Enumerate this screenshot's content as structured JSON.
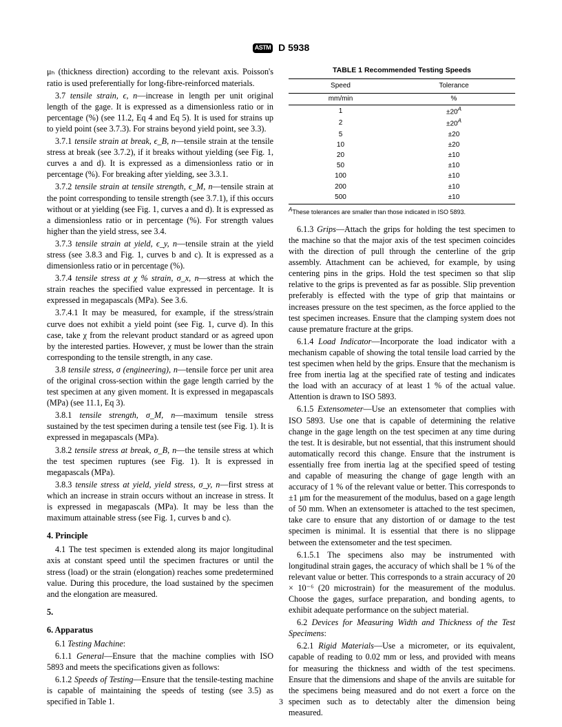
{
  "header": {
    "logo": "ASTM",
    "standard": "D 5938"
  },
  "left": {
    "p_mu": "μₕ (thickness direction) according to the relevant axis. Poisson's ratio is used preferentially for long-fibre-reinforced materials.",
    "s37": {
      "num": "3.7",
      "term": "tensile strain, ϵ, n",
      "body": "—increase in length per unit original length of the gage. It is expressed as a dimensionless ratio or in percentage (%) (see 11.2, Eq 4 and Eq 5). It is used for strains up to yield point (see 3.7.3). For strains beyond yield point, see 3.3)."
    },
    "s371": {
      "num": "3.7.1",
      "term": "tensile strain at break, ϵ_B, n",
      "body": "—tensile strain at the tensile stress at break (see 3.7.2), if it breaks without yielding (see Fig. 1, curves a and d). It is expressed as a dimensionless ratio or in percentage (%). For breaking after yielding, see 3.3.1."
    },
    "s372": {
      "num": "3.7.2",
      "term": "tensile strain at tensile strength, ϵ_M, n",
      "body": "—tensile strain at the point corresponding to tensile strength (see 3.7.1), if this occurs without or at yielding (see Fig. 1, curves a and d). It is expressed as a dimensionless ratio or in percentage (%). For strength values higher than the yield stress, see 3.4."
    },
    "s373": {
      "num": "3.7.3",
      "term": "tensile strain at yield, ϵ_y, n",
      "body": "—tensile strain at the yield stress (see 3.8.3 and Fig. 1, curves b and c). It is expressed as a dimensionless ratio or in percentage (%)."
    },
    "s374": {
      "num": "3.7.4",
      "term": "tensile stress at χ % strain, σ_x, n",
      "body": "—stress at which the strain reaches the specified value expressed in percentage. It is expressed in megapascals (MPa). See 3.6."
    },
    "s3741": {
      "num": "3.7.4.1",
      "body": "It may be measured, for example, if the stress/strain curve does not exhibit a yield point (see Fig. 1, curve d). In this case, take χ from the relevant product standard or as agreed upon by the interested parties. However, χ must be lower than the strain corresponding to the tensile strength, in any case."
    },
    "s38": {
      "num": "3.8",
      "term": "tensile stress, σ (engineering), n",
      "body": "—tensile force per unit area of the original cross-section within the gage length carried by the test specimen at any given moment. It is expressed in megapascals (MPa) (see 11.1, Eq 3)."
    },
    "s381": {
      "num": "3.8.1",
      "term": "tensile strength, σ_M, n",
      "body": "—maximum tensile stress sustained by the test specimen during a tensile test (see Fig. 1). It is expressed in megapascals (MPa)."
    },
    "s382": {
      "num": "3.8.2",
      "term": "tensile stress at break, σ_B, n",
      "body": "—the tensile stress at which the test specimen ruptures (see Fig. 1). It is expressed in megapascals (MPa)."
    },
    "s383": {
      "num": "3.8.3",
      "term": "tensile stress at yield, yield stress, σ_y, n",
      "body": "—first stress at which an increase in strain occurs without an increase in stress. It is expressed in megapascals (MPa). It may be less than the maximum attainable stress (see Fig. 1, curves b and c)."
    },
    "h4": "4. Principle",
    "s41": {
      "num": "4.1",
      "body": "The test specimen is extended along its major longitudinal axis at constant speed until the specimen fractures or until the stress (load) or the strain (elongation) reaches some predetermined value. During this procedure, the load sustained by the specimen and the elongation are measured."
    },
    "h5": "5.",
    "h6": "6. Apparatus",
    "s61": {
      "num": "6.1",
      "term": "Testing Machine",
      "body": ":"
    },
    "s611": {
      "num": "6.1.1",
      "term": "General",
      "body": "—Ensure that the machine complies with ISO 5893 and meets the specifications given as follows:"
    },
    "s612": {
      "num": "6.1.2",
      "term": "Speeds of Testing",
      "body": "—Ensure that the tensile-testing machine is capable of maintaining the speeds of testing (see 3.5) as specified in Table 1."
    }
  },
  "table1": {
    "title": "TABLE 1  Recommended Testing Speeds",
    "col1": "Speed",
    "col2": "Tolerance",
    "unit1": "mm/min",
    "unit2": "%",
    "rows": [
      {
        "s": "1",
        "t": "±20",
        "note": "A"
      },
      {
        "s": "2",
        "t": "±20",
        "note": "A"
      },
      {
        "s": "5",
        "t": "±20",
        "note": ""
      },
      {
        "s": "10",
        "t": "±20",
        "note": ""
      },
      {
        "s": "20",
        "t": "±10",
        "note": ""
      },
      {
        "s": "50",
        "t": "±10",
        "note": ""
      },
      {
        "s": "100",
        "t": "±10",
        "note": ""
      },
      {
        "s": "200",
        "t": "±10",
        "note": ""
      },
      {
        "s": "500",
        "t": "±10",
        "note": ""
      }
    ],
    "footnote_label": "A",
    "footnote": "These tolerances are smaller than those indicated in ISO 5893."
  },
  "right": {
    "s613": {
      "num": "6.1.3",
      "term": "Grips",
      "body": "—Attach the grips for holding the test specimen to the machine so that the major axis of the test specimen coincides with the direction of pull through the centerline of the grip assembly. Attachment can be achieved, for example, by using centering pins in the grips. Hold the test specimen so that slip relative to the grips is prevented as far as possible. Slip prevention preferably is effected with the type of grip that maintains or increases pressure on the test specimen, as the force applied to the test specimen increases. Ensure that the clamping system does not cause premature fracture at the grips."
    },
    "s614": {
      "num": "6.1.4",
      "term": "Load Indicator",
      "body": "—Incorporate the load indicator with a mechanism capable of showing the total tensile load carried by the test specimen when held by the grips. Ensure that the mechanism is free from inertia lag at the specified rate of testing and indicates the load with an accuracy of at least 1 % of the actual value. Attention is drawn to ISO 5893."
    },
    "s615": {
      "num": "6.1.5",
      "term": "Extensometer",
      "body": "—Use an extensometer that complies with ISO 5893. Use one that is capable of determining the relative change in the gage length on the test specimen at any time during the test. It is desirable, but not essential, that this instrument should automatically record this change. Ensure that the instrument is essentially free from inertia lag at the specified speed of testing and capable of measuring the change of gage length with an accuracy of 1 % of the relevant value or better. This corresponds to ±1 μm for the measurement of the modulus, based on a gage length of 50 mm. When an extensometer is attached to the test specimen, take care to ensure that any distortion of or damage to the test specimen is minimal. It is essential that there is no slippage between the extensometer and the test specimen."
    },
    "s6151": {
      "num": "6.1.5.1",
      "body": "The specimens also may be instrumented with longitudinal strain gages, the accuracy of which shall be 1 % of the relevant value or better. This corresponds to a strain accuracy of 20 × 10⁻⁶ (20 microstrain) for the measurement of the modulus. Choose the gages, surface preparation, and bonding agents, to exhibit adequate performance on the subject material."
    },
    "s62": {
      "num": "6.2",
      "term": "Devices for Measuring Width and Thickness of the Test Specimens",
      "body": ":"
    },
    "s621": {
      "num": "6.2.1",
      "term": "Rigid Materials",
      "body": "—Use a micrometer, or its equivalent, capable of reading to 0.02 mm or less, and provided with means for measuring the thickness and width of the test specimens. Ensure that the dimensions and shape of the anvils are suitable for the specimens being measured and do not exert a force on the specimen such as to detectably alter the dimension being measured."
    }
  },
  "pagenum": "3"
}
